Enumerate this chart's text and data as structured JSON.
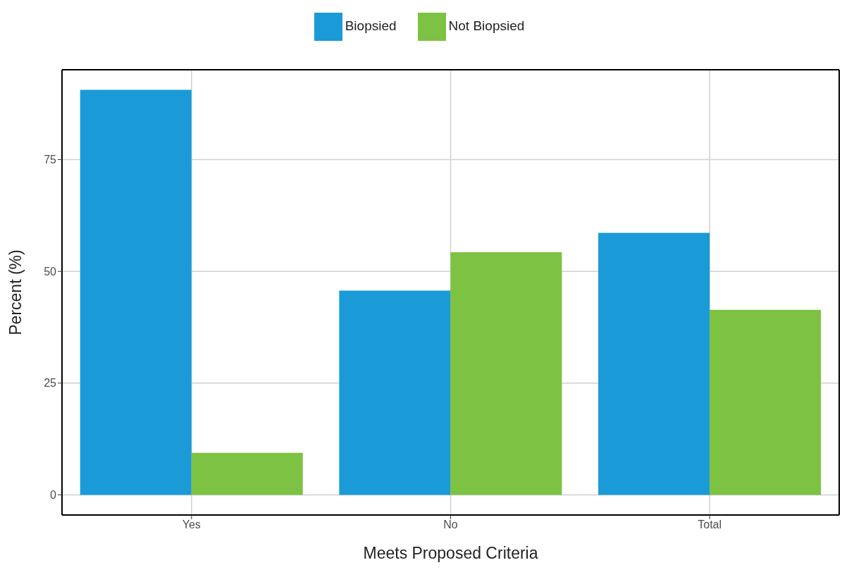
{
  "chart_data": {
    "type": "bar",
    "xlabel": "Meets Proposed Criteria",
    "ylabel": "Percent (%)",
    "categories": [
      "Yes",
      "No",
      "Total"
    ],
    "series": [
      {
        "name": "Biopsied",
        "color": "#1a9ad6",
        "values": [
          90.6,
          45.7,
          58.6
        ]
      },
      {
        "name": "Not Biopsied",
        "color": "#7dc242",
        "values": [
          9.4,
          54.3,
          41.4
        ]
      }
    ],
    "ylim": [
      -4.5,
      95.1
    ],
    "yticks": [
      0,
      25,
      50,
      75
    ],
    "grid": true,
    "legend": "top"
  }
}
